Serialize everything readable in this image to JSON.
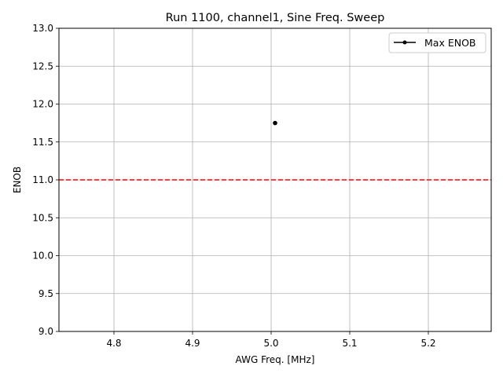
{
  "chart_data": {
    "type": "scatter",
    "title": "Run 1100, channel1, Sine Freq. Sweep",
    "xlabel": "AWG Freq. [MHz]",
    "ylabel": "ENOB",
    "xlim": [
      4.73,
      5.28
    ],
    "ylim": [
      9.0,
      13.0
    ],
    "xticks": [
      4.8,
      4.9,
      5.0,
      5.1,
      5.2
    ],
    "xtick_labels": [
      "4.8",
      "4.9",
      "5.0",
      "5.1",
      "5.2"
    ],
    "yticks": [
      9.0,
      9.5,
      10.0,
      10.5,
      11.0,
      11.5,
      12.0,
      12.5,
      13.0
    ],
    "ytick_labels": [
      "9.0",
      "9.5",
      "10.0",
      "10.5",
      "11.0",
      "11.5",
      "12.0",
      "12.5",
      "13.0"
    ],
    "grid": true,
    "legend_position": "top-right",
    "series": [
      {
        "name": "Max ENOB",
        "color": "#000000",
        "marker": "dot",
        "points": [
          {
            "x": 5.005,
            "y": 11.75
          }
        ]
      }
    ],
    "reference_lines": [
      {
        "y": 11.0,
        "color": "#ff0000",
        "style": "dashed"
      }
    ]
  }
}
